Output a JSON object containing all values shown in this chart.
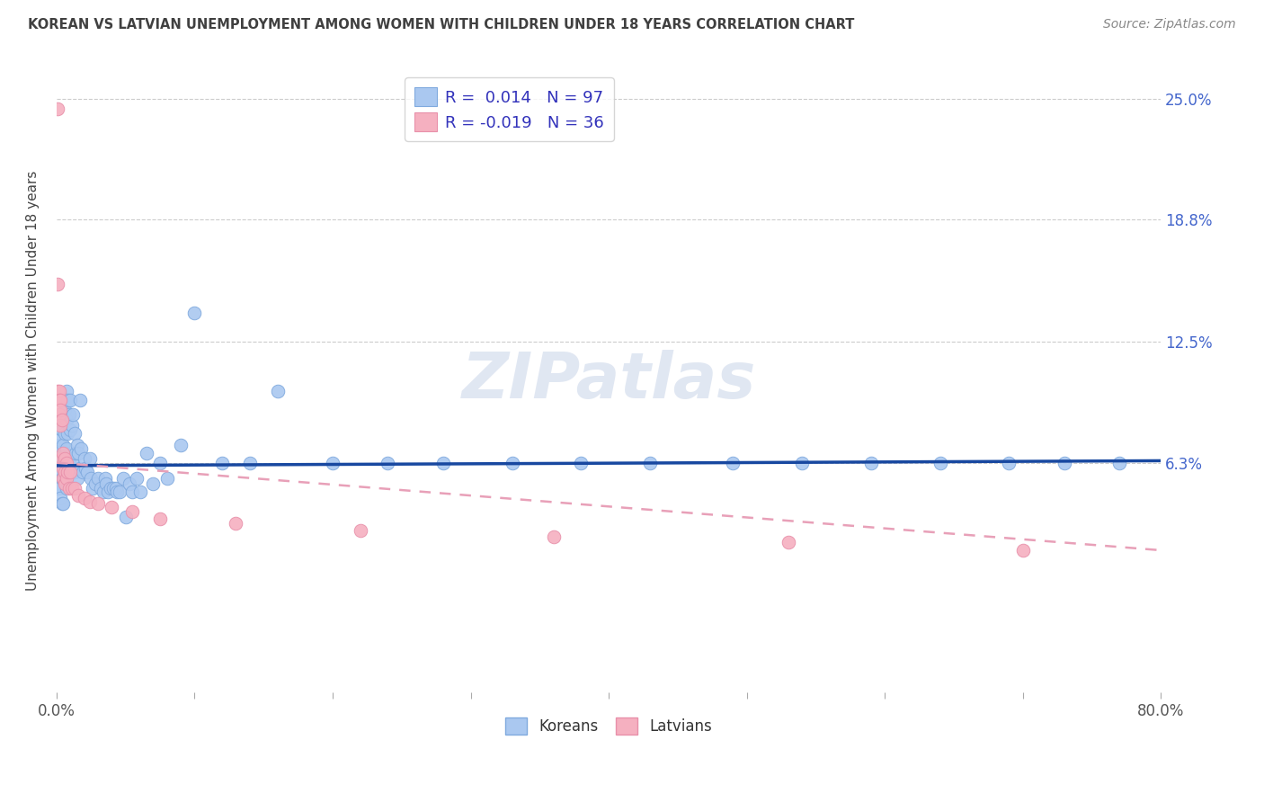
{
  "title": "KOREAN VS LATVIAN UNEMPLOYMENT AMONG WOMEN WITH CHILDREN UNDER 18 YEARS CORRELATION CHART",
  "source": "Source: ZipAtlas.com",
  "ylabel": "Unemployment Among Women with Children Under 18 years",
  "xmin": 0.0,
  "xmax": 0.8,
  "ymin": -0.055,
  "ymax": 0.265,
  "right_yticks": [
    0.063,
    0.125,
    0.188,
    0.25
  ],
  "right_yticklabels": [
    "6.3%",
    "12.5%",
    "18.8%",
    "25.0%"
  ],
  "korean_R": 0.014,
  "korean_N": 97,
  "latvian_R": -0.019,
  "latvian_N": 36,
  "legend_koreans": "Koreans",
  "legend_latvians": "Latvians",
  "korean_color": "#aac8f0",
  "korean_edge": "#80aade",
  "latvian_color": "#f5b0c0",
  "latvian_edge": "#e890aa",
  "korean_line_color": "#1848a0",
  "latvian_line_color": "#e8a0b8",
  "background_color": "#ffffff",
  "grid_color": "#cccccc",
  "title_color": "#404040",
  "source_color": "#888888",
  "legend_text_color": "#3333bb",
  "korean_trend_x0": 0.0,
  "korean_trend_y0": 0.0615,
  "korean_trend_x1": 0.8,
  "korean_trend_y1": 0.064,
  "latvian_trend_x0": 0.0,
  "latvian_trend_y0": 0.063,
  "latvian_trend_x1": 0.8,
  "latvian_trend_y1": 0.018,
  "korean_x": [
    0.001,
    0.001,
    0.001,
    0.002,
    0.002,
    0.002,
    0.002,
    0.003,
    0.003,
    0.003,
    0.003,
    0.004,
    0.004,
    0.004,
    0.004,
    0.005,
    0.005,
    0.005,
    0.005,
    0.005,
    0.006,
    0.006,
    0.006,
    0.006,
    0.007,
    0.007,
    0.007,
    0.007,
    0.007,
    0.008,
    0.008,
    0.008,
    0.009,
    0.009,
    0.01,
    0.01,
    0.01,
    0.011,
    0.011,
    0.012,
    0.012,
    0.013,
    0.013,
    0.014,
    0.015,
    0.015,
    0.016,
    0.017,
    0.017,
    0.018,
    0.019,
    0.02,
    0.021,
    0.022,
    0.024,
    0.025,
    0.026,
    0.028,
    0.03,
    0.032,
    0.034,
    0.035,
    0.036,
    0.037,
    0.039,
    0.041,
    0.043,
    0.044,
    0.046,
    0.048,
    0.05,
    0.053,
    0.055,
    0.058,
    0.061,
    0.065,
    0.07,
    0.075,
    0.08,
    0.09,
    0.1,
    0.12,
    0.14,
    0.16,
    0.2,
    0.24,
    0.28,
    0.33,
    0.38,
    0.43,
    0.49,
    0.54,
    0.59,
    0.64,
    0.69,
    0.73,
    0.77
  ],
  "korean_y": [
    0.065,
    0.058,
    0.05,
    0.068,
    0.072,
    0.058,
    0.05,
    0.075,
    0.063,
    0.058,
    0.045,
    0.08,
    0.063,
    0.055,
    0.042,
    0.085,
    0.072,
    0.063,
    0.055,
    0.042,
    0.09,
    0.078,
    0.068,
    0.055,
    0.1,
    0.085,
    0.07,
    0.06,
    0.05,
    0.095,
    0.078,
    0.06,
    0.088,
    0.062,
    0.095,
    0.08,
    0.062,
    0.082,
    0.058,
    0.088,
    0.065,
    0.078,
    0.058,
    0.068,
    0.072,
    0.055,
    0.068,
    0.095,
    0.06,
    0.07,
    0.058,
    0.065,
    0.06,
    0.058,
    0.065,
    0.055,
    0.05,
    0.052,
    0.055,
    0.05,
    0.048,
    0.055,
    0.052,
    0.048,
    0.05,
    0.05,
    0.05,
    0.048,
    0.048,
    0.055,
    0.035,
    0.052,
    0.048,
    0.055,
    0.048,
    0.068,
    0.052,
    0.063,
    0.055,
    0.072,
    0.14,
    0.063,
    0.063,
    0.1,
    0.063,
    0.063,
    0.063,
    0.063,
    0.063,
    0.063,
    0.063,
    0.063,
    0.063,
    0.063,
    0.063,
    0.063,
    0.063
  ],
  "latvian_x": [
    0.001,
    0.001,
    0.001,
    0.002,
    0.002,
    0.002,
    0.003,
    0.003,
    0.003,
    0.004,
    0.004,
    0.005,
    0.005,
    0.005,
    0.006,
    0.006,
    0.006,
    0.007,
    0.007,
    0.008,
    0.009,
    0.01,
    0.011,
    0.013,
    0.016,
    0.02,
    0.024,
    0.03,
    0.04,
    0.055,
    0.075,
    0.13,
    0.22,
    0.36,
    0.53,
    0.7
  ],
  "latvian_y": [
    0.245,
    0.155,
    0.1,
    0.1,
    0.095,
    0.088,
    0.095,
    0.09,
    0.082,
    0.085,
    0.065,
    0.068,
    0.06,
    0.055,
    0.065,
    0.058,
    0.052,
    0.063,
    0.055,
    0.058,
    0.05,
    0.058,
    0.05,
    0.05,
    0.046,
    0.045,
    0.043,
    0.042,
    0.04,
    0.038,
    0.034,
    0.032,
    0.028,
    0.025,
    0.022,
    0.018
  ]
}
